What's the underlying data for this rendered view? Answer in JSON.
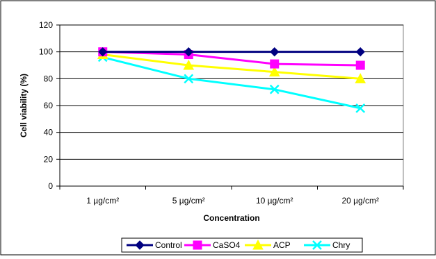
{
  "chart_data": {
    "type": "line",
    "title": "",
    "xlabel": "Concentration",
    "ylabel": "Cell viability (%)",
    "categories": [
      "1 µg/cm²",
      "5 µg/cm²",
      "10 µg/cm²",
      "20 µg/cm²"
    ],
    "ylim": [
      0,
      120
    ],
    "yticks": [
      0,
      20,
      40,
      60,
      80,
      100,
      120
    ],
    "grid": true,
    "legend_position": "bottom",
    "series": [
      {
        "name": "Control",
        "values": [
          100,
          100,
          100,
          100
        ],
        "color": "#000080",
        "marker": "diamond"
      },
      {
        "name": "CaSO4",
        "values": [
          100,
          98,
          91,
          90
        ],
        "color": "#FF00FF",
        "marker": "square"
      },
      {
        "name": "ACP",
        "values": [
          98,
          90,
          85,
          80
        ],
        "color": "#FFFF00",
        "marker": "triangle"
      },
      {
        "name": "Chry",
        "values": [
          96,
          80,
          72,
          58
        ],
        "color": "#00FFFF",
        "marker": "x"
      }
    ]
  }
}
